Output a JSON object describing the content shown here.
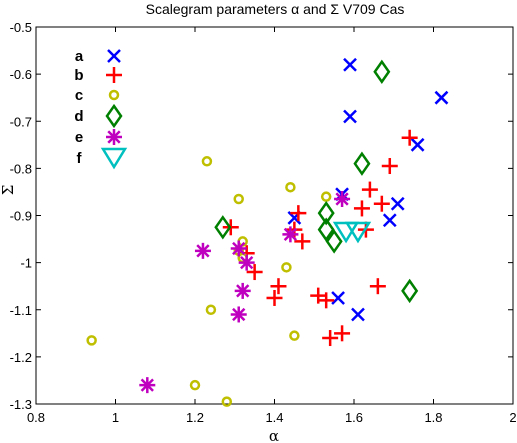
{
  "chart_data": {
    "type": "scatter",
    "title": "Scalegram parameters α and Σ V709 Cas",
    "xlabel": "α",
    "ylabel": "Σ",
    "xlim": [
      0.8,
      2.0
    ],
    "ylim": [
      -1.3,
      -0.5
    ],
    "xticks": [
      "0.8",
      "1",
      "1.2",
      "1.4",
      "1.6",
      "1.8",
      "2"
    ],
    "yticks": [
      "-0.5",
      "-0.6",
      "-0.7",
      "-0.8",
      "-0.9",
      "-1",
      "-1.1",
      "-1.2",
      "-1.3"
    ],
    "grid": false,
    "legend_position": "top-left",
    "series": [
      {
        "name": "a",
        "marker": "x",
        "color": "#0000ff",
        "points": [
          [
            1.59,
            -0.58
          ],
          [
            1.82,
            -0.65
          ],
          [
            1.59,
            -0.69
          ],
          [
            1.76,
            -0.75
          ],
          [
            1.71,
            -0.875
          ],
          [
            1.69,
            -0.91
          ],
          [
            1.57,
            -0.855
          ],
          [
            1.45,
            -0.905
          ],
          [
            1.56,
            -1.075
          ],
          [
            1.61,
            -1.11
          ]
        ]
      },
      {
        "name": "b",
        "marker": "+",
        "color": "#ff0000",
        "points": [
          [
            1.74,
            -0.735
          ],
          [
            1.69,
            -0.795
          ],
          [
            1.64,
            -0.845
          ],
          [
            1.67,
            -0.875
          ],
          [
            1.63,
            -0.93
          ],
          [
            1.62,
            -0.885
          ],
          [
            1.47,
            -0.955
          ],
          [
            1.45,
            -0.93
          ],
          [
            1.46,
            -0.895
          ],
          [
            1.29,
            -0.925
          ],
          [
            1.33,
            -0.98
          ],
          [
            1.35,
            -1.02
          ],
          [
            1.41,
            -1.05
          ],
          [
            1.4,
            -1.075
          ],
          [
            1.51,
            -1.07
          ],
          [
            1.53,
            -1.08
          ],
          [
            1.66,
            -1.05
          ],
          [
            1.54,
            -1.16
          ],
          [
            1.57,
            -1.15
          ]
        ]
      },
      {
        "name": "c",
        "marker": "o",
        "color": "#bfbf00",
        "points": [
          [
            1.23,
            -0.785
          ],
          [
            1.44,
            -0.84
          ],
          [
            1.53,
            -0.86
          ],
          [
            1.31,
            -0.865
          ],
          [
            1.32,
            -0.955
          ],
          [
            1.31,
            -0.975
          ],
          [
            1.32,
            -0.99
          ],
          [
            1.43,
            -1.01
          ],
          [
            1.24,
            -1.1
          ],
          [
            1.45,
            -1.155
          ],
          [
            0.94,
            -1.165
          ],
          [
            1.2,
            -1.26
          ],
          [
            1.28,
            -1.295
          ]
        ]
      },
      {
        "name": "d",
        "marker": "diamond",
        "color": "#008000",
        "points": [
          [
            1.67,
            -0.595
          ],
          [
            1.62,
            -0.79
          ],
          [
            1.53,
            -0.895
          ],
          [
            1.53,
            -0.93
          ],
          [
            1.55,
            -0.955
          ],
          [
            1.27,
            -0.925
          ],
          [
            1.74,
            -1.06
          ]
        ]
      },
      {
        "name": "e",
        "marker": "asterisk",
        "color": "#bf00bf",
        "points": [
          [
            1.57,
            -0.865
          ],
          [
            1.44,
            -0.94
          ],
          [
            1.31,
            -0.97
          ],
          [
            1.33,
            -1.0
          ],
          [
            1.22,
            -0.975
          ],
          [
            1.32,
            -1.06
          ],
          [
            1.31,
            -1.11
          ],
          [
            1.08,
            -1.26
          ]
        ]
      },
      {
        "name": "f",
        "marker": "triangle-down",
        "color": "#00bfbf",
        "points": [
          [
            1.58,
            -0.935
          ],
          [
            1.61,
            -0.935
          ]
        ]
      }
    ]
  }
}
